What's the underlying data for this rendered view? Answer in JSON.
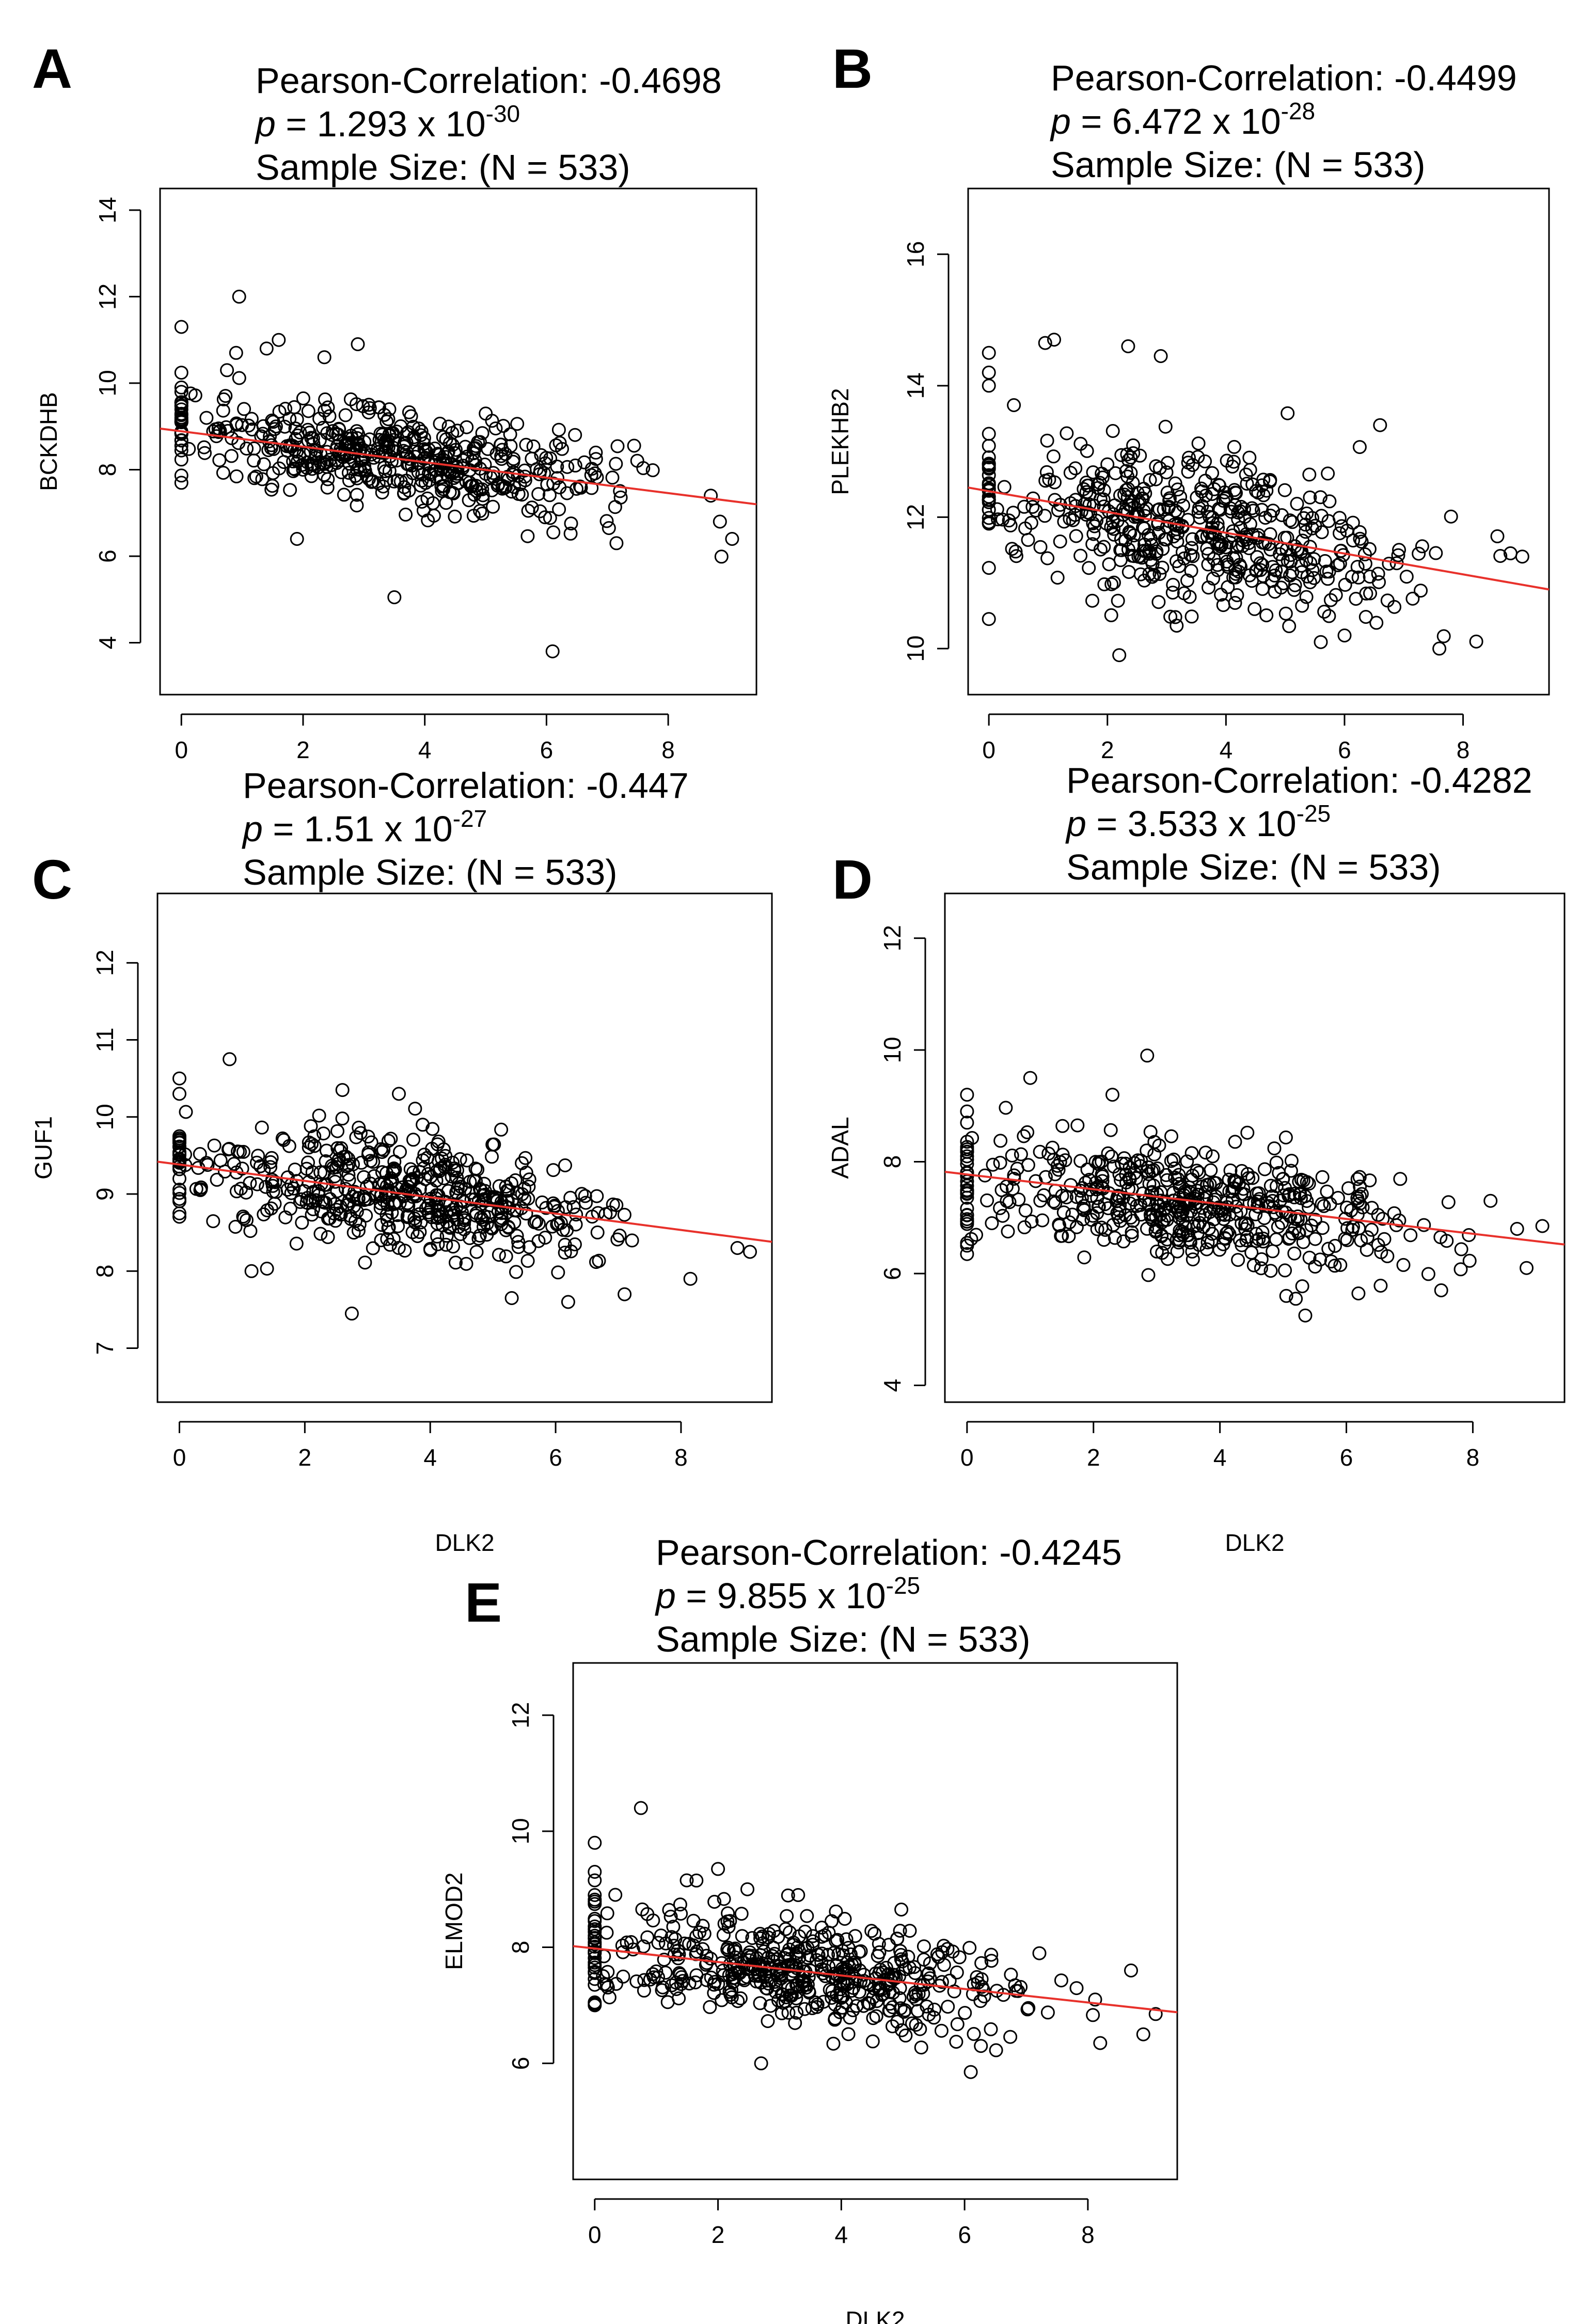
{
  "figure": {
    "x_axis_label": "DLK2",
    "sample_size_text": "Sample Size:  (N = 533)",
    "point_count_per_panel": 533,
    "fit_line_color": "#e8312b",
    "point_color": "#000000"
  },
  "chart_data": [
    {
      "panel": "A",
      "type": "scatter",
      "title_lines": [
        "Pearson-Correlation: -0.4698",
        "= 1.293 x 10",
        "Sample Size:  (N = 533)"
      ],
      "pearson_label": "Pearson-Correlation: -0.4698",
      "p_mantissa": "= 1.293 x 10",
      "p_exponent": "-30",
      "sample_size": "Sample Size:  (N = 533)",
      "xlabel": "",
      "ylabel": "BCKDHB",
      "xlim": [
        -0.35,
        9.45
      ],
      "ylim": [
        2.8,
        14.5
      ],
      "x_ticks": [
        0,
        2,
        4,
        6,
        8
      ],
      "y_ticks": [
        4,
        6,
        8,
        10,
        12,
        14
      ],
      "x_tick_labels": [
        "0",
        "2",
        "4",
        "6",
        "8"
      ],
      "y_tick_labels": [
        "4",
        "6",
        "8",
        "10",
        "12",
        "14"
      ],
      "fit_line": {
        "x0": -0.35,
        "y0": 8.95,
        "x1": 9.45,
        "y1": 7.2
      },
      "cloud": {
        "center_x": 3.6,
        "spread_x": 1.75,
        "max_x": 9.1,
        "zero_x_fraction": 0.05,
        "intercept": 8.95,
        "slope": -0.18,
        "noise": 0.55
      },
      "outliers": [
        {
          "x": 0.0,
          "y": 11.3
        },
        {
          "x": 0.95,
          "y": 12.0
        },
        {
          "x": 1.6,
          "y": 11.0
        },
        {
          "x": 1.4,
          "y": 10.8
        },
        {
          "x": 0.9,
          "y": 10.7
        },
        {
          "x": 2.35,
          "y": 10.6
        },
        {
          "x": 2.9,
          "y": 10.9
        },
        {
          "x": 3.5,
          "y": 5.05
        },
        {
          "x": 6.1,
          "y": 3.8
        },
        {
          "x": 9.05,
          "y": 6.4
        },
        {
          "x": 8.85,
          "y": 6.8
        },
        {
          "x": 1.9,
          "y": 6.4
        },
        {
          "x": 7.15,
          "y": 6.3
        },
        {
          "x": 8.7,
          "y": 7.4
        },
        {
          "x": 0.0,
          "y": 9.8
        },
        {
          "x": 0.0,
          "y": 9.9
        },
        {
          "x": 0.75,
          "y": 10.3
        }
      ]
    },
    {
      "panel": "B",
      "type": "scatter",
      "title_lines": [
        "Pearson-Correlation: -0.4499",
        "= 6.472 x 10",
        "Sample Size:  (N = 533)"
      ],
      "pearson_label": "Pearson-Correlation: -0.4499",
      "p_mantissa": "= 6.472 x 10",
      "p_exponent": "-28",
      "sample_size": "Sample Size:  (N = 533)",
      "xlabel": "",
      "ylabel": "PLEKHB2",
      "xlim": [
        -0.35,
        9.45
      ],
      "ylim": [
        9.3,
        17.0
      ],
      "x_ticks": [
        0,
        2,
        4,
        6,
        8
      ],
      "y_ticks": [
        10,
        12,
        14,
        16
      ],
      "x_tick_labels": [
        "0",
        "2",
        "4",
        "6",
        "8"
      ],
      "y_tick_labels": [
        "10",
        "12",
        "14",
        "16"
      ],
      "fit_line": {
        "x0": -0.35,
        "y0": 12.45,
        "x1": 9.45,
        "y1": 10.9
      },
      "cloud": {
        "center_x": 3.6,
        "spread_x": 1.75,
        "max_x": 9.1,
        "zero_x_fraction": 0.05,
        "intercept": 12.4,
        "slope": -0.16,
        "noise": 0.6
      },
      "outliers": [
        {
          "x": 0.0,
          "y": 14.5
        },
        {
          "x": 0.0,
          "y": 14.2
        },
        {
          "x": 0.0,
          "y": 14.0
        },
        {
          "x": 0.0,
          "y": 10.45
        },
        {
          "x": 1.1,
          "y": 14.7
        },
        {
          "x": 0.95,
          "y": 14.65
        },
        {
          "x": 2.35,
          "y": 14.6
        },
        {
          "x": 2.9,
          "y": 14.45
        },
        {
          "x": 6.6,
          "y": 13.4
        },
        {
          "x": 2.2,
          "y": 9.9
        },
        {
          "x": 7.6,
          "y": 10.0
        },
        {
          "x": 5.6,
          "y": 10.1
        },
        {
          "x": 6.0,
          "y": 10.2
        },
        {
          "x": 9.0,
          "y": 11.4
        },
        {
          "x": 8.8,
          "y": 11.45
        }
      ]
    },
    {
      "panel": "C",
      "type": "scatter",
      "title_lines": [
        "Pearson-Correlation: -0.447",
        "= 1.51 x 10",
        "Sample Size:  (N = 533)"
      ],
      "pearson_label": "Pearson-Correlation: -0.447",
      "p_mantissa": "= 1.51 x 10",
      "p_exponent": "-27",
      "sample_size": "Sample Size:  (N = 533)",
      "xlabel": "DLK2",
      "ylabel": "GUF1",
      "xlim": [
        -0.35,
        9.45
      ],
      "ylim": [
        6.3,
        12.9
      ],
      "x_ticks": [
        0,
        2,
        4,
        6,
        8
      ],
      "y_ticks": [
        7,
        8,
        9,
        10,
        11,
        12
      ],
      "x_tick_labels": [
        "0",
        "2",
        "4",
        "6",
        "8"
      ],
      "y_tick_labels": [
        "7",
        "8",
        "9",
        "10",
        "11",
        "12"
      ],
      "fit_line": {
        "x0": -0.35,
        "y0": 9.42,
        "x1": 9.45,
        "y1": 8.38
      },
      "cloud": {
        "center_x": 3.6,
        "spread_x": 1.75,
        "max_x": 9.1,
        "zero_x_fraction": 0.05,
        "intercept": 9.38,
        "slope": -0.11,
        "noise": 0.35
      },
      "outliers": [
        {
          "x": 0.0,
          "y": 10.5
        },
        {
          "x": 0.0,
          "y": 10.3
        },
        {
          "x": 0.8,
          "y": 10.75
        },
        {
          "x": 2.6,
          "y": 10.35
        },
        {
          "x": 3.5,
          "y": 10.3
        },
        {
          "x": 2.75,
          "y": 7.45
        },
        {
          "x": 6.2,
          "y": 7.6
        },
        {
          "x": 5.3,
          "y": 7.65
        },
        {
          "x": 7.1,
          "y": 7.7
        },
        {
          "x": 9.1,
          "y": 8.25
        },
        {
          "x": 8.9,
          "y": 8.3
        },
        {
          "x": 8.15,
          "y": 7.9
        },
        {
          "x": 1.15,
          "y": 8.0
        },
        {
          "x": 0.0,
          "y": 8.75
        }
      ]
    },
    {
      "panel": "D",
      "type": "scatter",
      "title_lines": [
        "Pearson-Correlation: -0.4282",
        "= 3.533 x 10",
        "Sample Size:  (N = 533)"
      ],
      "pearson_label": "Pearson-Correlation: -0.4282",
      "p_mantissa": "= 3.533 x 10",
      "p_exponent": "-25",
      "sample_size": "Sample Size:  (N = 533)",
      "xlabel": "DLK2",
      "ylabel": "ADAL",
      "xlim": [
        -0.35,
        9.45
      ],
      "ylim": [
        3.7,
        12.8
      ],
      "x_ticks": [
        0,
        2,
        4,
        6,
        8
      ],
      "y_ticks": [
        4,
        6,
        8,
        10,
        12
      ],
      "x_tick_labels": [
        "0",
        "2",
        "4",
        "6",
        "8"
      ],
      "y_tick_labels": [
        "4",
        "6",
        "8",
        "10",
        "12"
      ],
      "fit_line": {
        "x0": -0.35,
        "y0": 7.82,
        "x1": 9.45,
        "y1": 6.52
      },
      "cloud": {
        "center_x": 3.6,
        "spread_x": 1.75,
        "max_x": 9.1,
        "zero_x_fraction": 0.05,
        "intercept": 7.75,
        "slope": -0.135,
        "noise": 0.5
      },
      "outliers": [
        {
          "x": 0.0,
          "y": 9.2
        },
        {
          "x": 0.0,
          "y": 8.9
        },
        {
          "x": 0.0,
          "y": 8.7
        },
        {
          "x": 0.0,
          "y": 6.5
        },
        {
          "x": 0.0,
          "y": 6.35
        },
        {
          "x": 2.85,
          "y": 9.9
        },
        {
          "x": 1.0,
          "y": 9.5
        },
        {
          "x": 2.3,
          "y": 9.2
        },
        {
          "x": 5.35,
          "y": 5.25
        },
        {
          "x": 5.2,
          "y": 5.55
        },
        {
          "x": 5.05,
          "y": 5.6
        },
        {
          "x": 7.5,
          "y": 5.7
        },
        {
          "x": 8.85,
          "y": 6.1
        },
        {
          "x": 9.1,
          "y": 6.85
        },
        {
          "x": 8.7,
          "y": 6.8
        }
      ]
    },
    {
      "panel": "E",
      "type": "scatter",
      "title_lines": [
        "Pearson-Correlation: -0.4245",
        "= 9.855 x 10",
        "Sample Size:  (N = 533)"
      ],
      "pearson_label": "Pearson-Correlation: -0.4245",
      "p_mantissa": "= 9.855 x 10",
      "p_exponent": "-25",
      "sample_size": "Sample Size:  (N = 533)",
      "xlabel": "DLK2",
      "ylabel": "ELMOD2",
      "xlim": [
        -0.35,
        9.45
      ],
      "ylim": [
        4.0,
        12.9
      ],
      "x_ticks": [
        0,
        2,
        4,
        6,
        8
      ],
      "y_ticks": [
        6,
        8,
        10,
        12
      ],
      "x_tick_labels": [
        "0",
        "2",
        "4",
        "6",
        "8"
      ],
      "y_tick_labels": [
        "6",
        "8",
        "10",
        "12"
      ],
      "fit_line": {
        "x0": -0.35,
        "y0": 8.02,
        "x1": 9.45,
        "y1": 6.88
      },
      "cloud": {
        "center_x": 3.6,
        "spread_x": 1.75,
        "max_x": 9.1,
        "zero_x_fraction": 0.05,
        "intercept": 8.0,
        "slope": -0.12,
        "noise": 0.45
      },
      "outliers": [
        {
          "x": 0.0,
          "y": 9.8
        },
        {
          "x": 0.0,
          "y": 9.3
        },
        {
          "x": 0.0,
          "y": 8.9
        },
        {
          "x": 0.0,
          "y": 7.05
        },
        {
          "x": 0.0,
          "y": 7.0
        },
        {
          "x": 0.75,
          "y": 10.4
        },
        {
          "x": 2.0,
          "y": 9.35
        },
        {
          "x": 1.65,
          "y": 9.15
        },
        {
          "x": 3.3,
          "y": 8.9
        },
        {
          "x": 2.7,
          "y": 6.0
        },
        {
          "x": 6.1,
          "y": 5.85
        },
        {
          "x": 8.9,
          "y": 6.5
        },
        {
          "x": 9.1,
          "y": 6.85
        },
        {
          "x": 8.2,
          "y": 6.35
        },
        {
          "x": 8.7,
          "y": 7.6
        }
      ]
    }
  ]
}
